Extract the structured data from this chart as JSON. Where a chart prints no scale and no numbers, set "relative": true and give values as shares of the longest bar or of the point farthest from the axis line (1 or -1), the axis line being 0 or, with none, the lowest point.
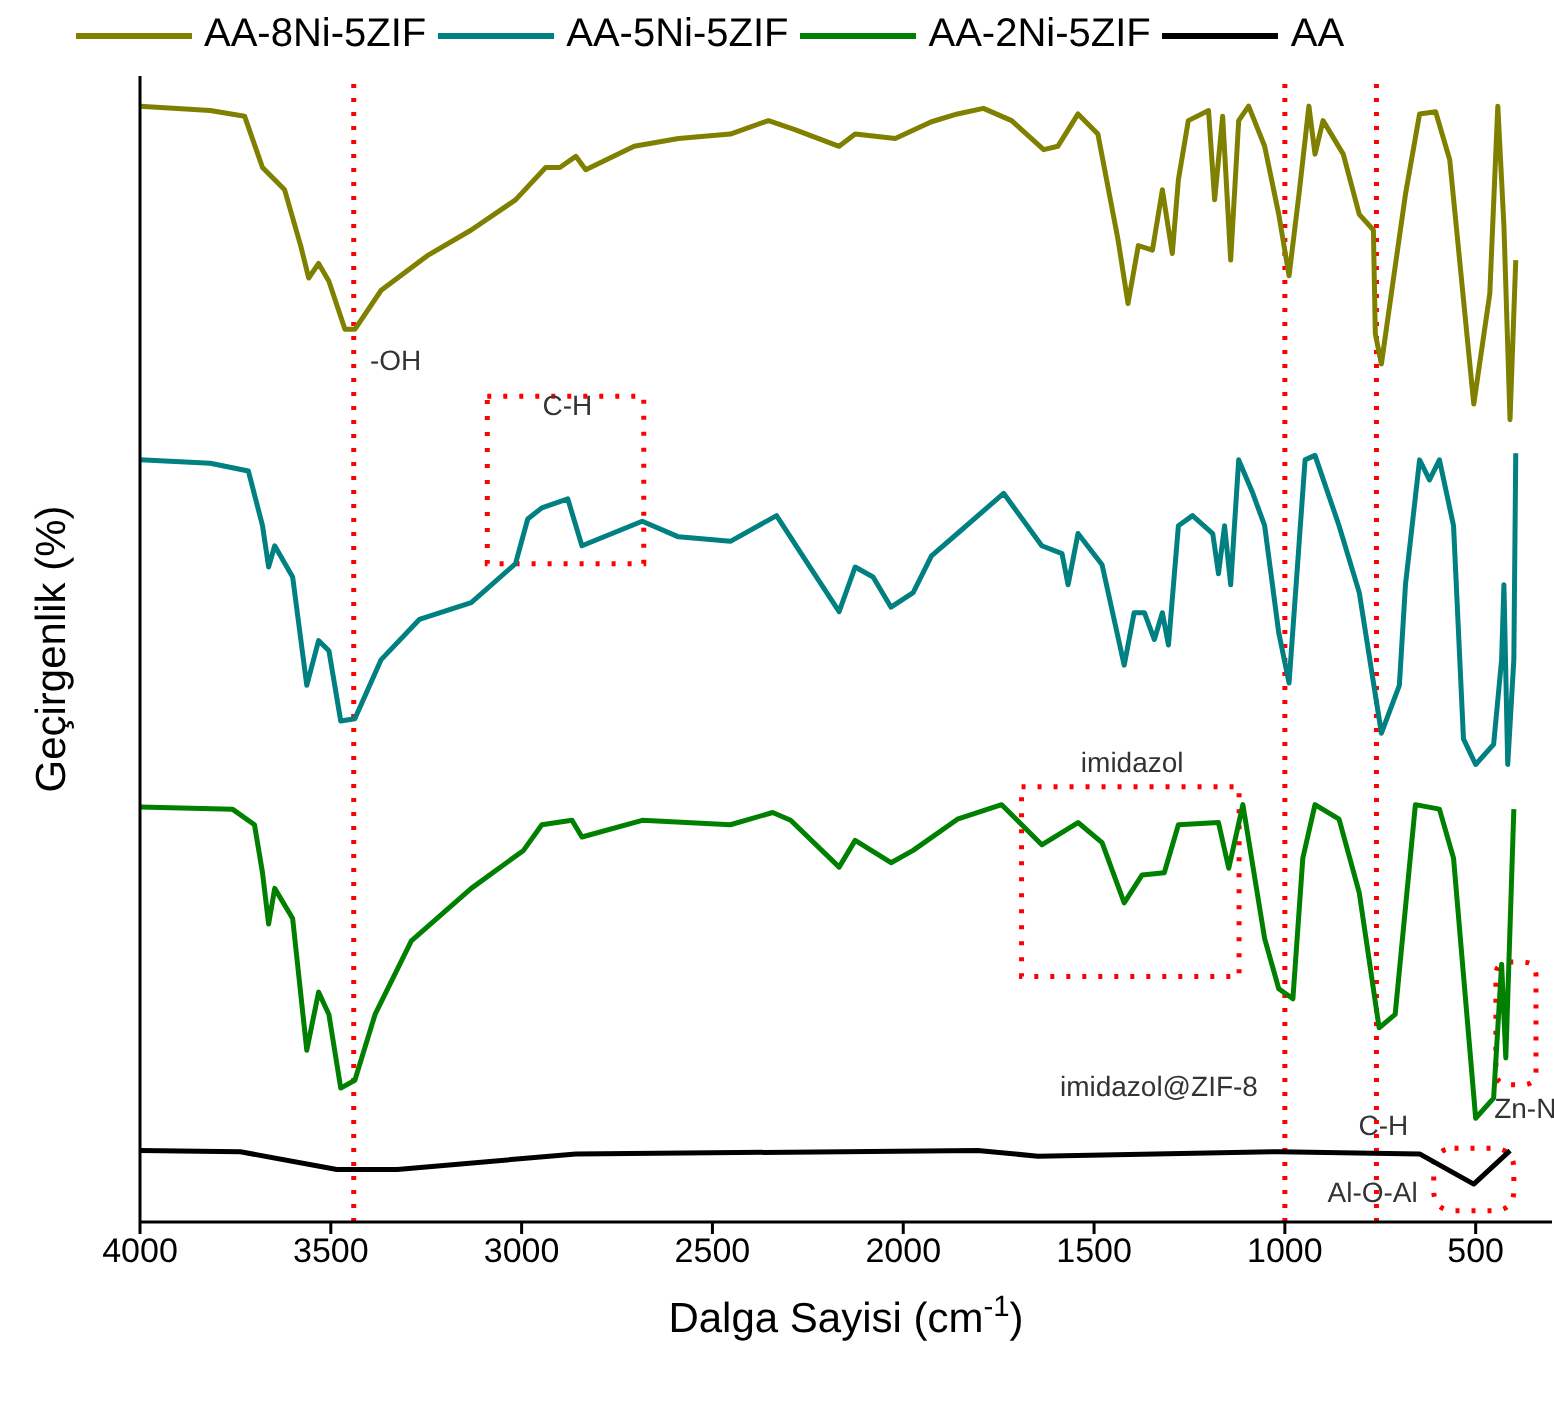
{
  "chart_data": {
    "type": "line",
    "relative": true,
    "xlabel": "Dalga Sayisi (cm$^{-1}$)",
    "ylabel": "Geçirgenlik (%)",
    "xlim": [
      4000,
      300
    ],
    "xticks": [
      4000,
      3500,
      3000,
      2500,
      2000,
      1500,
      1000,
      500
    ],
    "legend": "top",
    "marker": "none",
    "line_style": "solid",
    "series": [
      {
        "name": "AA-8Ni-5ZIF",
        "color": "#808000",
        "x": [
          4000,
          3816,
          3726,
          3679,
          3621,
          3579,
          3558,
          3532,
          3505,
          3463,
          3437,
          3368,
          3247,
          3132,
          3016,
          2937,
          2900,
          2858,
          2832,
          2705,
          2589,
          2453,
          2353,
          2284,
          2168,
          2126,
          2021,
          1926,
          1858,
          1790,
          1716,
          1632,
          1595,
          1542,
          1490,
          1437,
          1411,
          1384,
          1347,
          1321,
          1295,
          1279,
          1253,
          1200,
          1184,
          1163,
          1142,
          1121,
          1095,
          1053,
          1016,
          989,
          963,
          937,
          921,
          900,
          847,
          805,
          768,
          763,
          747,
          716,
          684,
          647,
          605,
          568,
          505,
          463,
          442,
          426,
          410,
          395
        ],
        "values": [
          1.0,
          0.996,
          0.991,
          0.945,
          0.925,
          0.875,
          0.846,
          0.859,
          0.843,
          0.8,
          0.8,
          0.835,
          0.866,
          0.889,
          0.916,
          0.945,
          0.945,
          0.955,
          0.943,
          0.964,
          0.971,
          0.975,
          0.987,
          0.979,
          0.964,
          0.975,
          0.971,
          0.986,
          0.993,
          0.998,
          0.987,
          0.961,
          0.964,
          0.993,
          0.975,
          0.88,
          0.823,
          0.875,
          0.871,
          0.925,
          0.868,
          0.934,
          0.987,
          0.996,
          0.916,
          0.991,
          0.862,
          0.987,
          1.0,
          0.964,
          0.903,
          0.848,
          0.921,
          1.0,
          0.957,
          0.987,
          0.957,
          0.903,
          0.889,
          0.796,
          0.769,
          0.844,
          0.921,
          0.993,
          0.995,
          0.952,
          0.733,
          0.832,
          1.0,
          0.893,
          0.719,
          0.862
        ]
      },
      {
        "name": "AA-5Ni-5ZIF",
        "color": "#008080",
        "x": [
          4000,
          3816,
          3716,
          3679,
          3663,
          3647,
          3600,
          3563,
          3532,
          3505,
          3474,
          3437,
          3368,
          3268,
          3132,
          3016,
          2984,
          2947,
          2879,
          2842,
          2684,
          2589,
          2453,
          2332,
          2258,
          2168,
          2126,
          2079,
          2032,
          1974,
          1926,
          1858,
          1737,
          1637,
          1584,
          1568,
          1542,
          1479,
          1421,
          1395,
          1368,
          1342,
          1321,
          1305,
          1279,
          1242,
          1189,
          1174,
          1158,
          1142,
          1121,
          1084,
          1053,
          1016,
          989,
          947,
          921,
          858,
          805,
          747,
          700,
          684,
          647,
          621,
          595,
          558,
          532,
          500,
          453,
          432,
          426,
          416,
          400,
          395
        ],
        "values": [
          0.683,
          0.68,
          0.673,
          0.624,
          0.587,
          0.606,
          0.578,
          0.481,
          0.521,
          0.512,
          0.449,
          0.451,
          0.504,
          0.54,
          0.555,
          0.59,
          0.63,
          0.64,
          0.648,
          0.606,
          0.628,
          0.614,
          0.61,
          0.633,
          0.594,
          0.547,
          0.587,
          0.578,
          0.551,
          0.564,
          0.597,
          0.617,
          0.653,
          0.606,
          0.599,
          0.571,
          0.617,
          0.589,
          0.499,
          0.546,
          0.546,
          0.522,
          0.546,
          0.517,
          0.624,
          0.633,
          0.617,
          0.581,
          0.624,
          0.571,
          0.683,
          0.653,
          0.624,
          0.528,
          0.483,
          0.683,
          0.687,
          0.624,
          0.564,
          0.438,
          0.481,
          0.571,
          0.683,
          0.665,
          0.683,
          0.624,
          0.433,
          0.41,
          0.428,
          0.504,
          0.571,
          0.41,
          0.504,
          0.689
        ]
      },
      {
        "name": "AA-2Ni-5ZIF",
        "color": "#008000",
        "x": [
          4000,
          3758,
          3700,
          3679,
          3663,
          3647,
          3600,
          3563,
          3532,
          3505,
          3474,
          3437,
          3384,
          3289,
          3132,
          2995,
          2947,
          2868,
          2842,
          2684,
          2453,
          2342,
          2295,
          2168,
          2126,
          2032,
          1974,
          1858,
          1742,
          1637,
          1542,
          1479,
          1421,
          1374,
          1316,
          1279,
          1174,
          1147,
          1110,
          1053,
          1016,
          979,
          953,
          921,
          858,
          805,
          753,
          711,
          658,
          595,
          558,
          500,
          453,
          432,
          421,
          400
        ],
        "values": [
          0.372,
          0.37,
          0.356,
          0.313,
          0.267,
          0.299,
          0.272,
          0.154,
          0.206,
          0.186,
          0.12,
          0.127,
          0.186,
          0.252,
          0.299,
          0.333,
          0.356,
          0.36,
          0.345,
          0.36,
          0.356,
          0.367,
          0.36,
          0.318,
          0.342,
          0.322,
          0.333,
          0.361,
          0.374,
          0.338,
          0.358,
          0.34,
          0.286,
          0.311,
          0.313,
          0.356,
          0.358,
          0.317,
          0.374,
          0.254,
          0.209,
          0.2,
          0.326,
          0.374,
          0.361,
          0.295,
          0.174,
          0.186,
          0.374,
          0.37,
          0.326,
          0.093,
          0.111,
          0.231,
          0.147,
          0.37
        ]
      },
      {
        "name": "AA",
        "color": "#000000",
        "x": [
          4000,
          3737,
          3484,
          3326,
          2858,
          1805,
          1647,
          1016,
          647,
          505,
          410
        ],
        "values": [
          0.064,
          0.063,
          0.047,
          0.047,
          0.061,
          0.064,
          0.059,
          0.063,
          0.061,
          0.034,
          0.064
        ]
      }
    ],
    "ref_lines": [
      {
        "axis": "x",
        "value": 3440,
        "color": "#ff0000",
        "line_style": "dotted"
      },
      {
        "axis": "x",
        "value": 1000,
        "color": "#ff0000",
        "line_style": "dotted"
      },
      {
        "axis": "x",
        "value": 760,
        "color": "#ff0000",
        "line_style": "dotted"
      }
    ],
    "annotations": [
      "-OH",
      "C-H",
      "imidazol",
      "imidazol@ZIF-8",
      "C-H",
      "Al-O-Al",
      "Zn-N"
    ]
  }
}
